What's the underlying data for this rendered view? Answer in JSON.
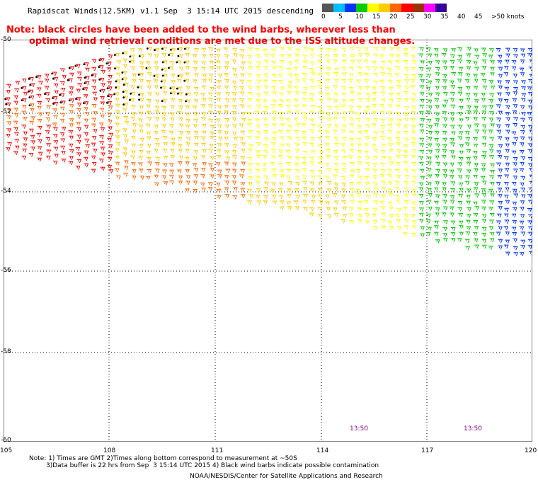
{
  "title": "Rapidscat Winds(12.5KM) v1.1 Sep  3 15:14 UTC 2015 descending",
  "note_line1": "Note: black circles have been added to the wind barbs, wherever less than",
  "note_line2": "optimal wind retrieval conditions are met due to the ISS altitude changes.",
  "legend": {
    "labels": [
      "0",
      "5",
      "10",
      "15",
      "20",
      "25",
      "30",
      "35",
      "40",
      "45",
      ">50 knots"
    ],
    "colors": [
      "#555555",
      "#00bfff",
      "#0033ff",
      "#00cc00",
      "#ffff00",
      "#ffcc00",
      "#ff6600",
      "#ff0000",
      "#993300",
      "#ff00ff",
      "#330099"
    ]
  },
  "map": {
    "lat_labels": [
      "-50",
      "-52",
      "-54",
      "-56",
      "-58",
      "-60"
    ],
    "lon_labels": [
      "105",
      "108",
      "111",
      "114",
      "117",
      "120"
    ],
    "time_labels": [
      "13:50",
      "13:50"
    ]
  },
  "footer": {
    "line1": "Note: 1) Times are GMT 2)Times along bottom correspond to measurement at ~50S",
    "line2": "3)Data buffer is 22 hrs from Sep  3 15:14 UTC 2015 4) Black wind barbs indicate possible contamination",
    "line3": "NOAA/NESDIS/Center for Satellite Applications and Research"
  }
}
